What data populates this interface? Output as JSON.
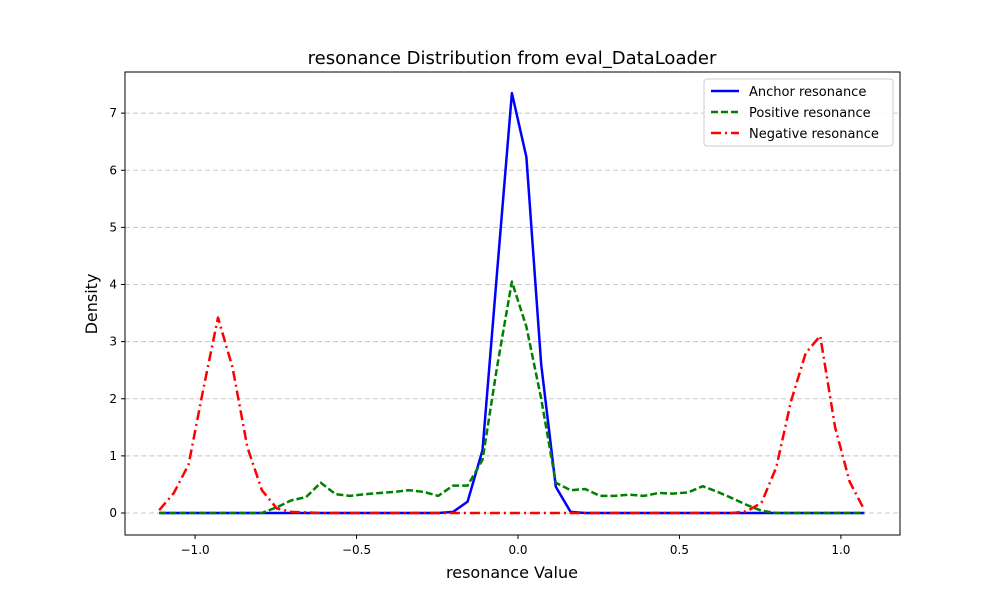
{
  "chart_data": {
    "type": "line",
    "title": "resonance Distribution from eval_DataLoader",
    "xlabel": "resonance Value",
    "ylabel": "Density",
    "xlim": [
      -1.217,
      1.183
    ],
    "ylim": [
      -0.385,
      7.72
    ],
    "xticks": [
      -1.0,
      -0.5,
      0.0,
      0.5,
      1.0
    ],
    "xtick_labels": [
      "−1.0",
      "−0.5",
      "0.0",
      "0.5",
      "1.0"
    ],
    "yticks": [
      0,
      1,
      2,
      3,
      4,
      5,
      6,
      7
    ],
    "ytick_labels": [
      "0",
      "1",
      "2",
      "3",
      "4",
      "5",
      "6",
      "7"
    ],
    "grid": "y-dashed",
    "legend_position": "top-right",
    "x": [
      -1.111,
      -1.066,
      -1.02,
      -0.975,
      -0.929,
      -0.884,
      -0.838,
      -0.793,
      -0.747,
      -0.702,
      -0.656,
      -0.611,
      -0.565,
      -0.52,
      -0.474,
      -0.429,
      -0.383,
      -0.338,
      -0.292,
      -0.247,
      -0.201,
      -0.156,
      -0.11,
      -0.065,
      -0.019,
      0.026,
      0.072,
      0.117,
      0.163,
      0.208,
      0.254,
      0.299,
      0.345,
      0.39,
      0.436,
      0.481,
      0.527,
      0.572,
      0.618,
      0.663,
      0.709,
      0.754,
      0.8,
      0.845,
      0.891,
      0.936,
      0.982,
      1.027,
      1.073
    ],
    "series": [
      {
        "name": "Anchor resonance",
        "color": "#0000ff",
        "style": "solid",
        "values": [
          0,
          0,
          0,
          0,
          0,
          0,
          0,
          0,
          0,
          0,
          0,
          0,
          0,
          0,
          0,
          0,
          0,
          0,
          0,
          0,
          0.02,
          0.2,
          1.1,
          4.2,
          7.35,
          6.23,
          2.6,
          0.46,
          0.02,
          0,
          0,
          0,
          0,
          0,
          0,
          0,
          0,
          0,
          0,
          0,
          0,
          0,
          0,
          0,
          0,
          0,
          0,
          0,
          0
        ]
      },
      {
        "name": "Positive resonance",
        "color": "#008000",
        "style": "dashed",
        "values": [
          0,
          0,
          0,
          0,
          0,
          0,
          0,
          0,
          0.1,
          0.22,
          0.28,
          0.53,
          0.33,
          0.3,
          0.33,
          0.35,
          0.37,
          0.4,
          0.37,
          0.3,
          0.48,
          0.48,
          0.93,
          2.55,
          4.05,
          3.26,
          2.0,
          0.53,
          0.4,
          0.42,
          0.3,
          0.3,
          0.32,
          0.3,
          0.35,
          0.34,
          0.36,
          0.47,
          0.37,
          0.26,
          0.14,
          0.04,
          0,
          0,
          0,
          0,
          0,
          0,
          0
        ]
      },
      {
        "name": "Negative resonance",
        "color": "#ff0000",
        "style": "dashdot",
        "values": [
          0.05,
          0.35,
          0.85,
          2.15,
          3.42,
          2.55,
          1.15,
          0.4,
          0.08,
          0.02,
          0.01,
          0,
          0,
          0,
          0,
          0,
          0,
          0,
          0,
          0,
          0,
          0,
          0,
          0,
          0,
          0,
          0,
          0,
          0,
          0,
          0,
          0,
          0,
          0,
          0,
          0,
          0,
          0,
          0,
          0,
          0.03,
          0.18,
          0.8,
          1.95,
          2.8,
          3.1,
          1.5,
          0.55,
          0.05
        ]
      }
    ]
  }
}
